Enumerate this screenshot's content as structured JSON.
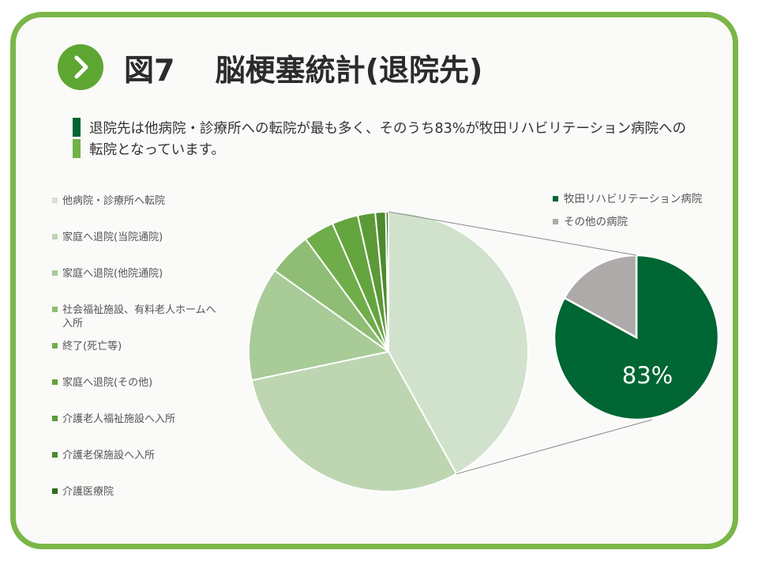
{
  "header": {
    "title": "図7　 脳梗塞統計(退院先)",
    "description": "退院先は他病院・診療所への転院が最も多く、そのうち83%が牧田リハビリテーション病院への転院となっています。"
  },
  "colors": {
    "frame": "#7ab648",
    "accent_dark": "#006633",
    "accent_light": "#70b148",
    "leader_line": "#888888"
  },
  "icons": {
    "header_icon": "chevron-right-icon"
  },
  "chart_data": [
    {
      "type": "pie",
      "title": "",
      "legend_position": "left",
      "categories": [
        "他病院・診療所へ転院",
        "家庭へ退院(当院通院)",
        "家庭へ退院(他院通院)",
        "社会福祉施設、有料老人ホームへ入所",
        "終了(死亡等)",
        "家庭へ退院(その他)",
        "介護老人福祉施設へ入所",
        "介護老保施設へ入所",
        "介護医療院"
      ],
      "values": [
        41.5,
        29.5,
        13.0,
        5.0,
        3.5,
        3.0,
        2.0,
        1.2,
        0.3
      ],
      "colors": [
        "#d1e2cc",
        "#bdd6b1",
        "#a8cb98",
        "#8fbd75",
        "#6fad4a",
        "#64a43e",
        "#5c9a38",
        "#4c8a2e",
        "#2f6b1e"
      ],
      "exploded_category": "他病院・診療所へ転院"
    },
    {
      "type": "pie",
      "title": "",
      "legend_position": "top-right",
      "parent_category": "他病院・診療所へ転院",
      "categories": [
        "牧田リハビリテーション病院",
        "その他の病院"
      ],
      "values": [
        83,
        17
      ],
      "colors": [
        "#006633",
        "#aeaaa9"
      ],
      "data_labels": [
        "83%",
        ""
      ]
    }
  ]
}
